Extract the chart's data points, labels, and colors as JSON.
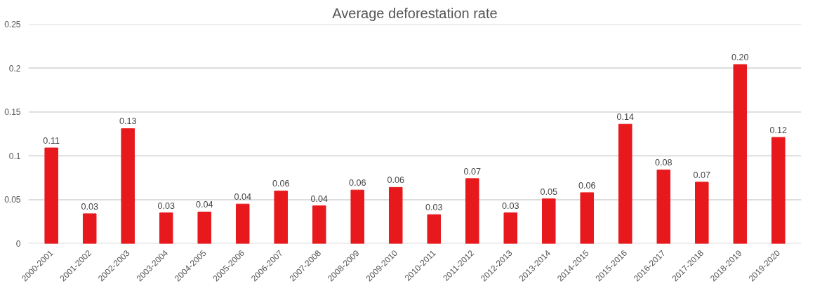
{
  "chart_data": {
    "type": "bar",
    "title": "Average deforestation rate",
    "categories": [
      "2000-2001",
      "2001-2002",
      "2002-2003",
      "2003-2004",
      "2004-2005",
      "2005-2006",
      "2006-2007",
      "2007-2008",
      "2008-2009",
      "2009-2010",
      "2010-2011",
      "2011-2012",
      "2012-2013",
      "2013-2014",
      "2014-2015",
      "2015-2016",
      "2016-2017",
      "2017-2018",
      "2018-2019",
      "2019-2020"
    ],
    "values": [
      0.109,
      0.034,
      0.131,
      0.035,
      0.036,
      0.045,
      0.06,
      0.043,
      0.061,
      0.064,
      0.033,
      0.074,
      0.035,
      0.051,
      0.058,
      0.136,
      0.084,
      0.07,
      0.204,
      0.121
    ],
    "value_labels": [
      "0.11",
      "0.03",
      "0.13",
      "0.03",
      "0.04",
      "0.04",
      "0.06",
      "0.04",
      "0.06",
      "0.06",
      "0.03",
      "0.07",
      "0.03",
      "0.05",
      "0.06",
      "0.14",
      "0.08",
      "0.07",
      "0.20",
      "0.12"
    ],
    "color": "#e8191d",
    "ylim": [
      0,
      0.25
    ],
    "yticks": [
      0,
      0.05,
      0.1,
      0.15,
      0.2,
      0.25
    ],
    "grid": "y"
  }
}
